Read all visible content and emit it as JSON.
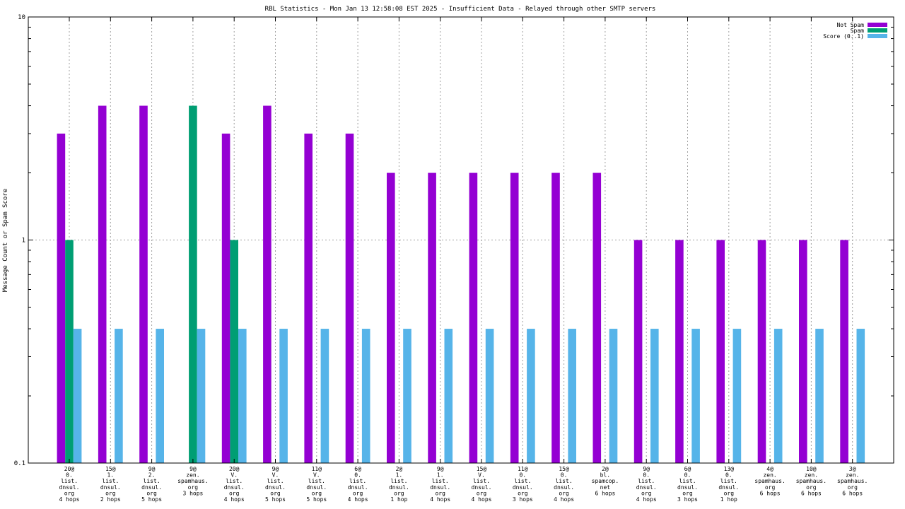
{
  "chart_data": {
    "type": "bar",
    "title": "RBL Statistics - Mon Jan 13 12:58:08 EST 2025 - Insufficient Data - Relayed through other SMTP servers",
    "xlabel": "",
    "ylabel": "Message Count or Spam Score",
    "yscale": "log",
    "ylim": [
      0.1,
      10
    ],
    "yticks": [
      "0.1",
      "1",
      "10"
    ],
    "grid": true,
    "legend_position": "top-right",
    "colors": {
      "not_spam": "#9400d3",
      "spam": "#009e73",
      "score": "#56b4e9"
    },
    "categories": [
      [
        "20@",
        "0.",
        "list.",
        "dnsul.",
        "org",
        "4 hops"
      ],
      [
        "15@",
        "1.",
        "list.",
        "dnsul.",
        "org",
        "2 hops"
      ],
      [
        "9@",
        "2.",
        "list.",
        "dnsul.",
        "org",
        "5 hops"
      ],
      [
        "9@",
        "zen.",
        "spamhaus.",
        "org",
        "3 hops"
      ],
      [
        "20@",
        "V.",
        "list.",
        "dnsul.",
        "org",
        "4 hops"
      ],
      [
        "9@",
        "V.",
        "list.",
        "dnsul.",
        "org",
        "5 hops"
      ],
      [
        "11@",
        "V.",
        "list.",
        "dnsul.",
        "org",
        "5 hops"
      ],
      [
        "6@",
        "0.",
        "list.",
        "dnsul.",
        "org",
        "4 hops"
      ],
      [
        "2@",
        "1.",
        "list.",
        "dnsul.",
        "org",
        "1 hop"
      ],
      [
        "9@",
        "1.",
        "list.",
        "dnsul.",
        "org",
        "4 hops"
      ],
      [
        "15@",
        "V.",
        "list.",
        "dnsul.",
        "org",
        "4 hops"
      ],
      [
        "11@",
        "0.",
        "list.",
        "dnsul.",
        "org",
        "3 hops"
      ],
      [
        "15@",
        "0.",
        "list.",
        "dnsul.",
        "org",
        "4 hops"
      ],
      [
        "2@",
        "bl.",
        "spamcop.",
        "net",
        "6 hops"
      ],
      [
        "9@",
        "0.",
        "list.",
        "dnsul.",
        "org",
        "4 hops"
      ],
      [
        "6@",
        "0.",
        "list.",
        "dnsul.",
        "org",
        "3 hops"
      ],
      [
        "13@",
        "0.",
        "list.",
        "dnsul.",
        "org",
        "1 hop"
      ],
      [
        "4@",
        "zen.",
        "spamhaus.",
        "org",
        "6 hops"
      ],
      [
        "10@",
        "zen.",
        "spamhaus.",
        "org",
        "6 hops"
      ],
      [
        "3@",
        "zen.",
        "spamhaus.",
        "org",
        "6 hops"
      ]
    ],
    "series": [
      {
        "name": "Not Spam",
        "color": "#9400d3",
        "values": [
          3,
          4,
          4,
          0,
          3,
          4,
          3,
          3,
          2,
          2,
          2,
          2,
          2,
          2,
          1,
          1,
          1,
          1,
          1,
          1
        ]
      },
      {
        "name": "Spam",
        "color": "#009e73",
        "values": [
          1,
          0,
          0,
          4,
          1,
          0,
          0,
          0,
          0,
          0,
          0,
          0,
          0,
          0,
          0,
          0,
          0,
          0,
          0,
          0
        ]
      },
      {
        "name": "Score (0..1)",
        "color": "#56b4e9",
        "values": [
          0.4,
          0.4,
          0.4,
          0.4,
          0.4,
          0.4,
          0.4,
          0.4,
          0.4,
          0.4,
          0.4,
          0.4,
          0.4,
          0.4,
          0.4,
          0.4,
          0.4,
          0.4,
          0.4,
          0.4
        ]
      }
    ]
  }
}
